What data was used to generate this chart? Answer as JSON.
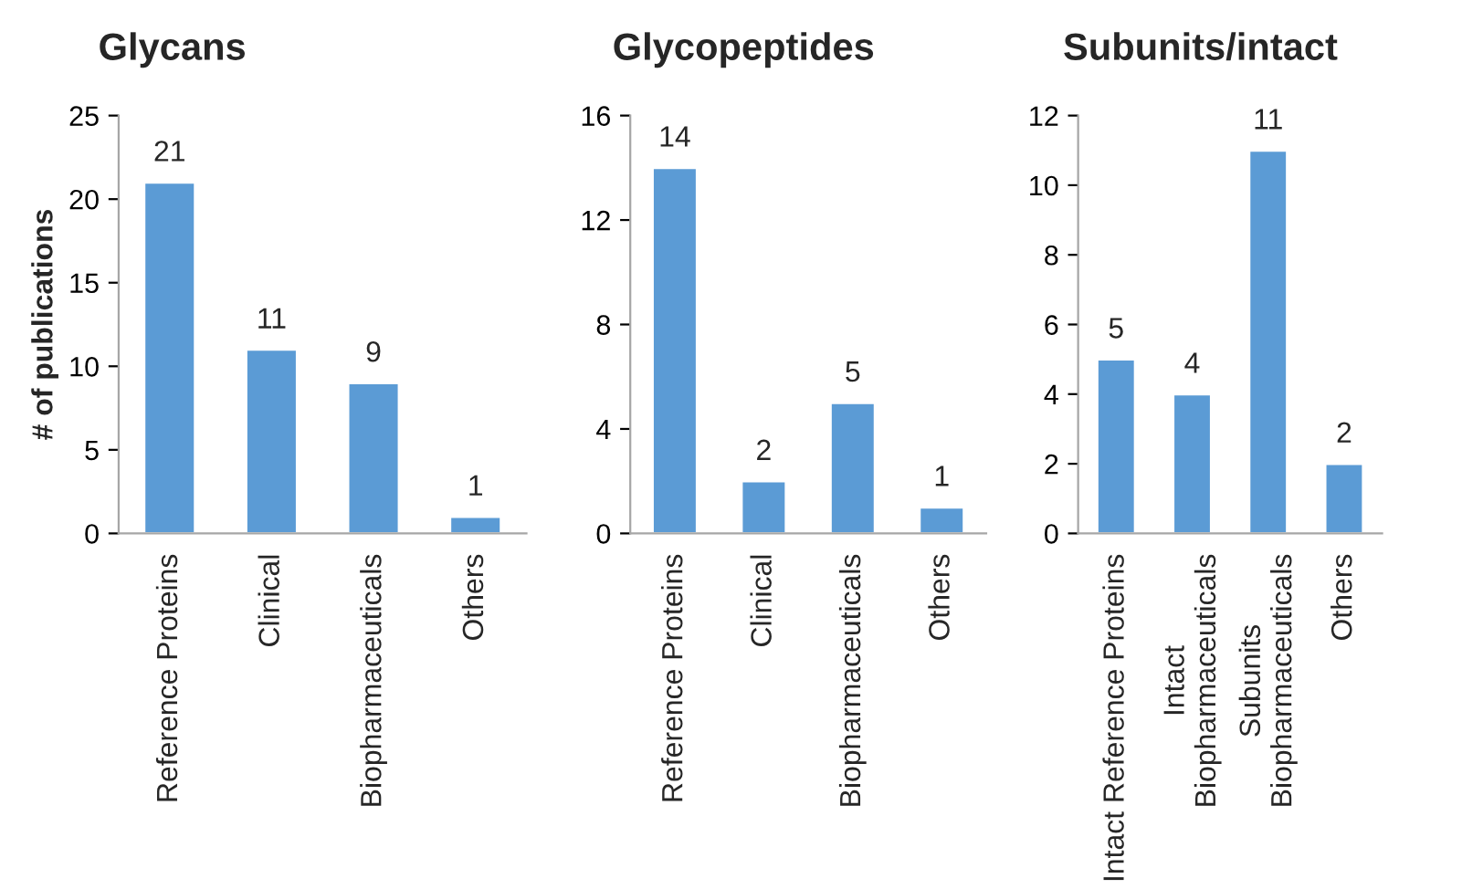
{
  "chart_data": [
    {
      "type": "bar",
      "title": "Glycans",
      "ylabel": "# of publications",
      "categories": [
        "Reference Proteins",
        "Clinical",
        "Biopharmaceuticals",
        "Others"
      ],
      "values": [
        21,
        11,
        9,
        1
      ],
      "color": "#5b9bd5",
      "ylim": [
        0,
        25
      ],
      "yticks": [
        0,
        5,
        10,
        15,
        20,
        25
      ],
      "data_labels": true,
      "grid": false
    },
    {
      "type": "bar",
      "title": "Glycopeptides",
      "categories": [
        "Reference Proteins",
        "Clinical",
        "Biopharmaceuticals",
        "Others"
      ],
      "values": [
        14,
        2,
        5,
        1
      ],
      "color": "#5b9bd5",
      "ylim": [
        0,
        16
      ],
      "yticks": [
        0,
        4,
        8,
        12,
        16
      ],
      "data_labels": true,
      "grid": false
    },
    {
      "type": "bar",
      "title": "Subunits/intact",
      "categories": [
        "Intact Reference Proteins",
        "Intact\nBiopharmaceuticals",
        "Subunits\nBiopharmaceuticals",
        "Others"
      ],
      "values": [
        5,
        4,
        11,
        2
      ],
      "color": "#5b9bd5",
      "ylim": [
        0,
        12
      ],
      "yticks": [
        0,
        2,
        4,
        6,
        8,
        10,
        12
      ],
      "data_labels": true,
      "grid": false
    }
  ]
}
